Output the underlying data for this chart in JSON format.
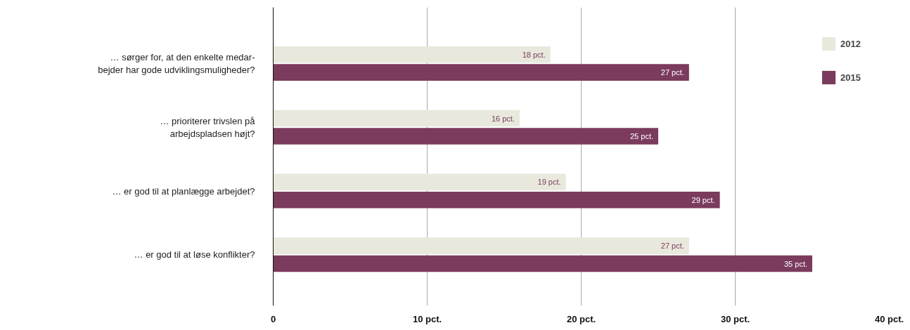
{
  "chart_data": {
    "type": "bar",
    "orientation": "horizontal",
    "categories": [
      "… sørger for, at den enkelte medar-\nbejder har gode udviklingsmuligheder?",
      "… prioriterer trivslen på\narbejdspladsen højt?",
      "… er god til at planlægge arbejdet?",
      "… er god til at løse konflikter?"
    ],
    "series": [
      {
        "name": "2012",
        "color": "#e8e8dc",
        "values": [
          18,
          16,
          19,
          27
        ],
        "value_labels": [
          "18 pct.",
          "16 pct.",
          "19 pct.",
          "27 pct."
        ]
      },
      {
        "name": "2015",
        "color": "#7b3b5c",
        "values": [
          27,
          25,
          29,
          35
        ],
        "value_labels": [
          "27 pct.",
          "25 pct.",
          "29 pct.",
          "35 pct."
        ]
      }
    ],
    "xlim": [
      0,
      40
    ],
    "xticks": [
      0,
      {
        "value": 10,
        "label": "10 pct."
      },
      {
        "value": 20,
        "label": "20 pct."
      },
      {
        "value": 30,
        "label": "30 pct."
      },
      {
        "value": 40,
        "label": "40 pct."
      }
    ],
    "grid": "x",
    "legend": "top right"
  }
}
